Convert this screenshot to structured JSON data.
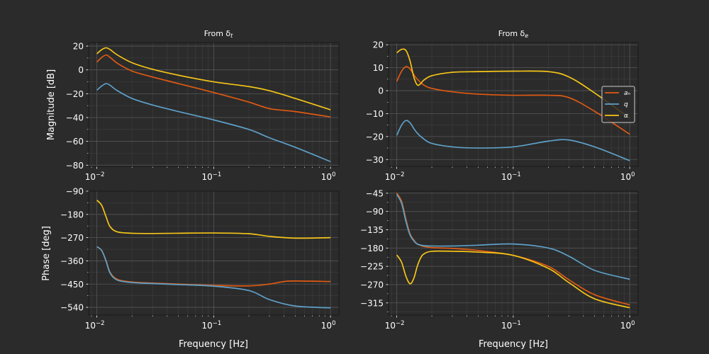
{
  "figure": {
    "background": "#2b2b2b",
    "axes_bg": "#2b2b2b",
    "grid_major": "#555555",
    "grid_minor": "#3f3f3f",
    "text_color": "#ffffff"
  },
  "chart_data": [
    {
      "id": "mag-dt",
      "type": "line",
      "title": "From δt",
      "title_main": "From δ",
      "title_sub": "t",
      "xscale": "log",
      "xlim": [
        0.0085,
        1.18
      ],
      "ylim": [
        -81,
        23
      ],
      "xlabel": "",
      "ylabel": "Magnitude [dB]",
      "xticks": [
        0.01,
        0.1,
        1
      ],
      "xtick_labels": [
        "10",
        "10",
        "10"
      ],
      "xtick_exps": [
        "−2",
        "−1",
        "0"
      ],
      "yticks": [
        20,
        0,
        -20,
        -40,
        -60,
        -80
      ],
      "ytick_labels": [
        "20",
        "0",
        "−20",
        "−40",
        "−60",
        "−80"
      ],
      "series": [
        {
          "name": "aₙ",
          "color": "#e05a12",
          "x": [
            0.01,
            0.011,
            0.012,
            0.013,
            0.015,
            0.02,
            0.03,
            0.05,
            0.1,
            0.2,
            0.3,
            0.5,
            1.0
          ],
          "y": [
            6.5,
            10.5,
            12.5,
            10.5,
            5.5,
            -1.0,
            -6.0,
            -11.5,
            -19.0,
            -27.0,
            -32.5,
            -35.0,
            -39.5
          ]
        },
        {
          "name": "q",
          "color": "#5ea0c8",
          "x": [
            0.01,
            0.011,
            0.012,
            0.013,
            0.015,
            0.02,
            0.03,
            0.05,
            0.1,
            0.2,
            0.3,
            0.5,
            1.0
          ],
          "y": [
            -17.0,
            -13.5,
            -11.5,
            -13.0,
            -17.5,
            -24.0,
            -29.5,
            -35.0,
            -42.0,
            -50.0,
            -57.0,
            -65.0,
            -77.0
          ]
        },
        {
          "name": "α",
          "color": "#f5c518",
          "x": [
            0.01,
            0.011,
            0.012,
            0.013,
            0.015,
            0.02,
            0.03,
            0.05,
            0.1,
            0.2,
            0.3,
            0.5,
            1.0
          ],
          "y": [
            13.5,
            17.0,
            18.5,
            17.0,
            12.5,
            6.0,
            0.5,
            -4.5,
            -10.0,
            -14.0,
            -17.5,
            -24.0,
            -33.5
          ]
        }
      ]
    },
    {
      "id": "mag-de",
      "type": "line",
      "title": "From δe",
      "title_main": "From δ",
      "title_sub": "e",
      "xscale": "log",
      "xlim": [
        0.0085,
        1.18
      ],
      "ylim": [
        -33,
        21
      ],
      "xlabel": "",
      "ylabel": "",
      "xticks": [
        0.01,
        0.1,
        1
      ],
      "xtick_labels": [
        "10",
        "10",
        "10"
      ],
      "xtick_exps": [
        "−2",
        "−1",
        "0"
      ],
      "yticks": [
        20,
        10,
        0,
        -10,
        -20,
        -30
      ],
      "ytick_labels": [
        "20",
        "10",
        "0",
        "−10",
        "−20",
        "−30"
      ],
      "legend": {
        "position": "right",
        "entries": [
          "aₙ",
          "q",
          "α"
        ]
      },
      "series": [
        {
          "name": "aₙ",
          "color": "#e05a12",
          "x": [
            0.01,
            0.011,
            0.012,
            0.013,
            0.014,
            0.015,
            0.017,
            0.02,
            0.03,
            0.05,
            0.1,
            0.2,
            0.3,
            0.5,
            1.0
          ],
          "y": [
            4.0,
            8.5,
            10.5,
            9.5,
            7.0,
            5.0,
            2.5,
            1.0,
            -0.5,
            -1.5,
            -2.0,
            -2.0,
            -3.0,
            -9.0,
            -19.0
          ]
        },
        {
          "name": "q",
          "color": "#5ea0c8",
          "x": [
            0.01,
            0.011,
            0.012,
            0.013,
            0.014,
            0.015,
            0.017,
            0.02,
            0.03,
            0.05,
            0.1,
            0.2,
            0.3,
            0.5,
            1.0
          ],
          "y": [
            -19.5,
            -15.0,
            -13.0,
            -14.0,
            -16.5,
            -18.5,
            -21.0,
            -23.0,
            -24.5,
            -25.0,
            -24.5,
            -22.0,
            -21.5,
            -24.5,
            -30.5
          ]
        },
        {
          "name": "α",
          "color": "#f5c518",
          "x": [
            0.01,
            0.011,
            0.012,
            0.013,
            0.014,
            0.015,
            0.016,
            0.017,
            0.02,
            0.03,
            0.05,
            0.1,
            0.2,
            0.3,
            0.5,
            1.0
          ],
          "y": [
            16.5,
            18.0,
            17.5,
            13.0,
            6.0,
            2.5,
            3.0,
            4.5,
            6.5,
            8.0,
            8.3,
            8.5,
            8.3,
            6.0,
            -1.0,
            -12.0
          ]
        }
      ]
    },
    {
      "id": "phase-dt",
      "type": "line",
      "title": "",
      "xscale": "log",
      "xlim": [
        0.0085,
        1.18
      ],
      "ylim": [
        -570,
        -90
      ],
      "xlabel": "Frequency [Hz]",
      "ylabel": "Phase [deg]",
      "xticks": [
        0.01,
        0.1,
        1
      ],
      "xtick_labels": [
        "10",
        "10",
        "10"
      ],
      "xtick_exps": [
        "−2",
        "−1",
        "0"
      ],
      "yticks": [
        -90,
        -180,
        -270,
        -360,
        -450,
        -540
      ],
      "ytick_labels": [
        "−90",
        "−180",
        "−270",
        "−360",
        "−450",
        "−540"
      ],
      "series": [
        {
          "name": "aₙ",
          "color": "#e05a12",
          "x": [
            0.01,
            0.011,
            0.012,
            0.013,
            0.015,
            0.02,
            0.03,
            0.05,
            0.1,
            0.2,
            0.3,
            0.4,
            0.5,
            1.0
          ],
          "y": [
            -305,
            -320,
            -360,
            -405,
            -432,
            -442,
            -446,
            -450,
            -455,
            -457,
            -450,
            -440,
            -438,
            -440
          ]
        },
        {
          "name": "q",
          "color": "#5ea0c8",
          "x": [
            0.01,
            0.011,
            0.012,
            0.013,
            0.015,
            0.02,
            0.03,
            0.05,
            0.1,
            0.2,
            0.3,
            0.5,
            1.0
          ],
          "y": [
            -305,
            -320,
            -362,
            -408,
            -435,
            -444,
            -448,
            -452,
            -458,
            -475,
            -510,
            -535,
            -542
          ]
        },
        {
          "name": "α",
          "color": "#f5c518",
          "x": [
            0.01,
            0.011,
            0.012,
            0.013,
            0.015,
            0.02,
            0.03,
            0.05,
            0.1,
            0.2,
            0.3,
            0.5,
            1.0
          ],
          "y": [
            -125,
            -145,
            -190,
            -228,
            -248,
            -253,
            -254,
            -253,
            -252,
            -255,
            -265,
            -272,
            -270
          ]
        }
      ]
    },
    {
      "id": "phase-de",
      "type": "line",
      "title": "",
      "xscale": "log",
      "xlim": [
        0.0085,
        1.18
      ],
      "ylim": [
        -345,
        -40
      ],
      "xlabel": "Frequency [Hz]",
      "ylabel": "",
      "xticks": [
        0.01,
        0.1,
        1
      ],
      "xtick_labels": [
        "10",
        "10",
        "10"
      ],
      "xtick_exps": [
        "−2",
        "−1",
        "0"
      ],
      "yticks": [
        -45,
        -90,
        -135,
        -180,
        -225,
        -270,
        -315
      ],
      "ytick_labels": [
        "−45",
        "−90",
        "−135",
        "−180",
        "−225",
        "−270",
        "−315"
      ],
      "series": [
        {
          "name": "aₙ",
          "color": "#e05a12",
          "x": [
            0.01,
            0.011,
            0.012,
            0.013,
            0.014,
            0.015,
            0.017,
            0.02,
            0.03,
            0.05,
            0.1,
            0.2,
            0.3,
            0.5,
            1.0
          ],
          "y": [
            -45,
            -65,
            -110,
            -145,
            -160,
            -170,
            -176,
            -179,
            -181,
            -186,
            -198,
            -225,
            -258,
            -295,
            -320
          ]
        },
        {
          "name": "q",
          "color": "#5ea0c8",
          "x": [
            0.01,
            0.011,
            0.012,
            0.013,
            0.014,
            0.015,
            0.017,
            0.02,
            0.03,
            0.05,
            0.1,
            0.2,
            0.3,
            0.5,
            1.0
          ],
          "y": [
            -48,
            -70,
            -115,
            -148,
            -162,
            -170,
            -174,
            -175,
            -175,
            -173,
            -170,
            -180,
            -200,
            -235,
            -257
          ]
        },
        {
          "name": "α",
          "color": "#f5c518",
          "x": [
            0.01,
            0.011,
            0.012,
            0.013,
            0.014,
            0.015,
            0.016,
            0.017,
            0.02,
            0.03,
            0.05,
            0.1,
            0.2,
            0.3,
            0.5,
            1.0
          ],
          "y": [
            -197,
            -215,
            -250,
            -268,
            -255,
            -225,
            -205,
            -195,
            -188,
            -188,
            -190,
            -198,
            -230,
            -265,
            -305,
            -327
          ]
        }
      ]
    }
  ]
}
